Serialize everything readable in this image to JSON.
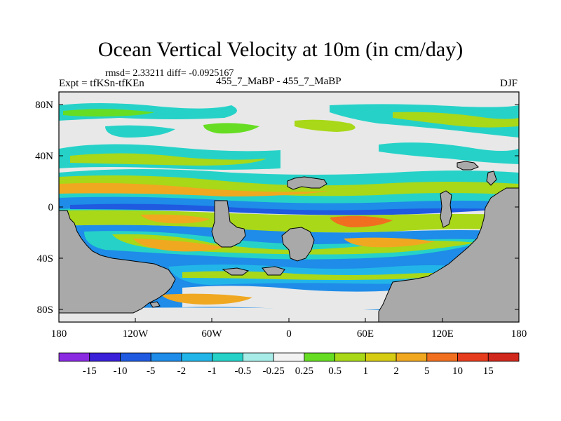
{
  "title": "Ocean Vertical Velocity at 10m (in cm/day)",
  "stats_text": "rmsd= 2.33211 diff= -0.0925167",
  "experiment_label": "Expt = tfKSn-tfKEn",
  "run_label": "455_7_MaBP - 455_7_MaBP",
  "season_label": "DJF",
  "y_axis_labels": [
    "80N",
    "40N",
    "0",
    "40S",
    "80S"
  ],
  "x_axis_labels": [
    "180",
    "120W",
    "60W",
    "0",
    "60E",
    "120E",
    "180"
  ],
  "colorbar": {
    "labels": [
      "-15",
      "-10",
      "-5",
      "-2",
      "-1",
      "-0.5",
      "-0.25",
      "0.25",
      "0.5",
      "1",
      "2",
      "5",
      "10",
      "15"
    ],
    "colors": [
      "#8a2be2",
      "#3a20d8",
      "#1f5ae0",
      "#1e8ce8",
      "#22b6e8",
      "#26d2c8",
      "#a8ece8",
      "#f2f2f2",
      "#66dd22",
      "#a8d818",
      "#d6cc14",
      "#f0a820",
      "#f07020",
      "#e63d1e",
      "#d0281c"
    ]
  },
  "colors": {
    "land": "#a9a9a9",
    "ocean_neutral": "#e8e8e8",
    "frame": "#000000"
  }
}
